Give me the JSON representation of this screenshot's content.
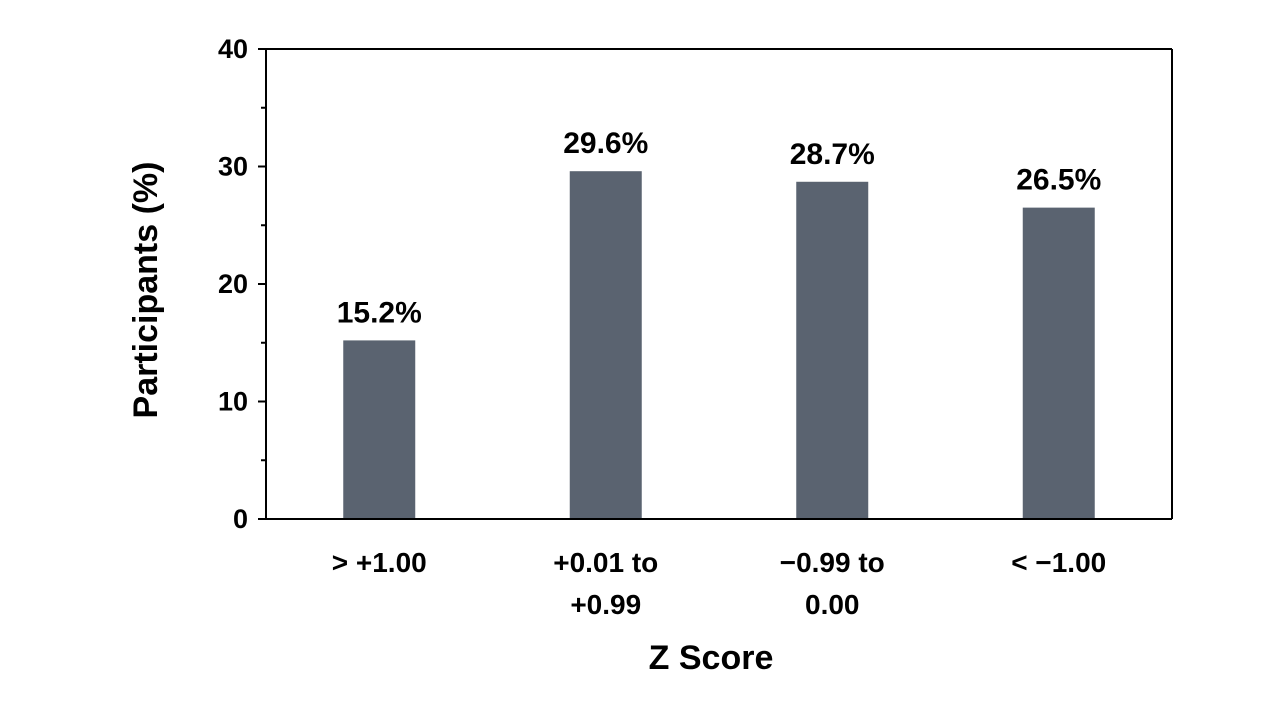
{
  "chart_data": {
    "type": "bar",
    "categories": [
      [
        "> +1.00"
      ],
      [
        "+0.01 to",
        "+0.99"
      ],
      [
        "−0.99 to",
        "0.00"
      ],
      [
        "< −1.00"
      ]
    ],
    "values": [
      15.2,
      29.6,
      28.7,
      26.5
    ],
    "data_labels": [
      "15.2%",
      "29.6%",
      "28.7%",
      "26.5%"
    ],
    "title": "",
    "xlabel": "Z Score",
    "ylabel": "Participants (%)",
    "ylim": [
      0,
      40
    ],
    "yticks": [
      0,
      10,
      20,
      30,
      40
    ],
    "y_minor_step": 5,
    "grid": false,
    "legend": "none",
    "bar_color": "#5a6370",
    "axis_color": "#000000"
  }
}
